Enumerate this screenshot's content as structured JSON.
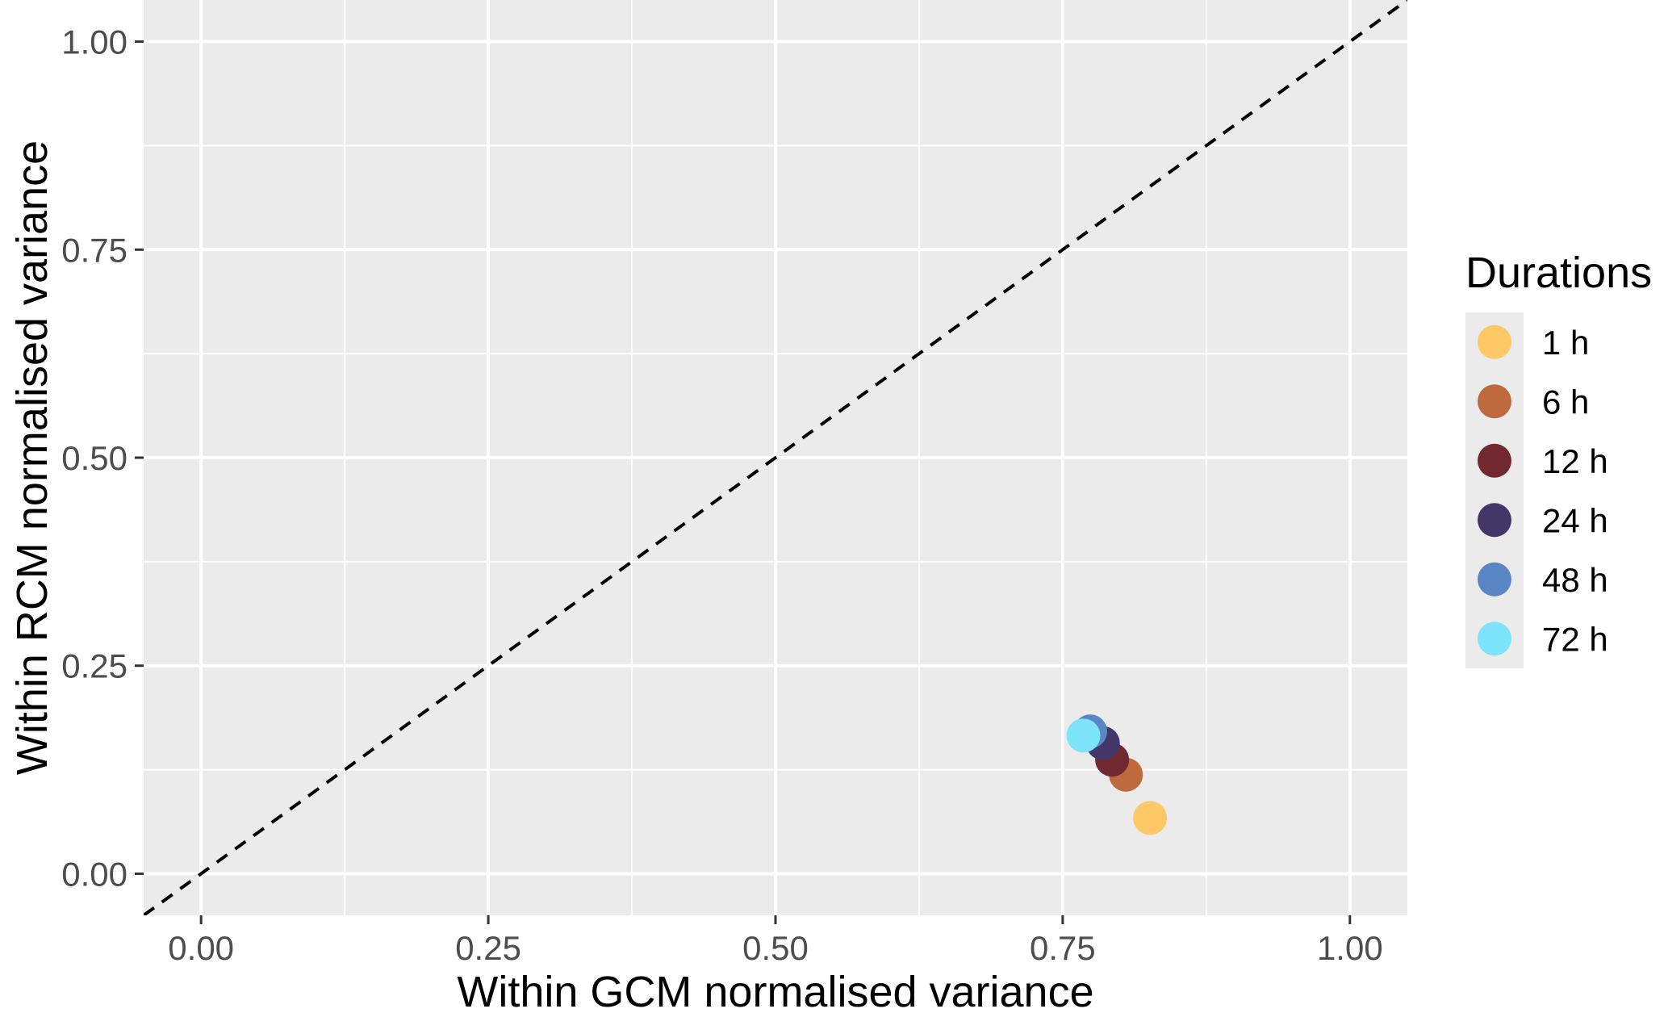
{
  "chart_data": {
    "type": "scatter",
    "xlabel": "Within GCM normalised variance",
    "ylabel": "Within RCM normalised variance",
    "xlim": [
      -0.05,
      1.05
    ],
    "ylim": [
      -0.05,
      1.05
    ],
    "xticks": [
      0.0,
      0.25,
      0.5,
      0.75,
      1.0
    ],
    "xtick_labels": [
      "0.00",
      "0.25",
      "0.50",
      "0.75",
      "1.00"
    ],
    "yticks": [
      0.0,
      0.25,
      0.5,
      0.75,
      1.0
    ],
    "ytick_labels": [
      "0.00",
      "0.25",
      "0.50",
      "0.75",
      "1.00"
    ],
    "grid": true,
    "reference_line": {
      "type": "identity",
      "style": "dashed",
      "color": "#000000"
    },
    "legend": {
      "title": "Durations",
      "placement": "right"
    },
    "series": [
      {
        "name": "1 h",
        "color": "#FDC865",
        "x": [
          0.826
        ],
        "y": [
          0.067
        ]
      },
      {
        "name": "6 h",
        "color": "#BF6A3E",
        "x": [
          0.805
        ],
        "y": [
          0.119
        ]
      },
      {
        "name": "12 h",
        "color": "#722831",
        "x": [
          0.793
        ],
        "y": [
          0.137
        ]
      },
      {
        "name": "24 h",
        "color": "#433668",
        "x": [
          0.785
        ],
        "y": [
          0.157
        ]
      },
      {
        "name": "48 h",
        "color": "#5B86C5",
        "x": [
          0.774
        ],
        "y": [
          0.171
        ]
      },
      {
        "name": "72 h",
        "color": "#7EE4FB",
        "x": [
          0.768
        ],
        "y": [
          0.166
        ]
      }
    ]
  }
}
